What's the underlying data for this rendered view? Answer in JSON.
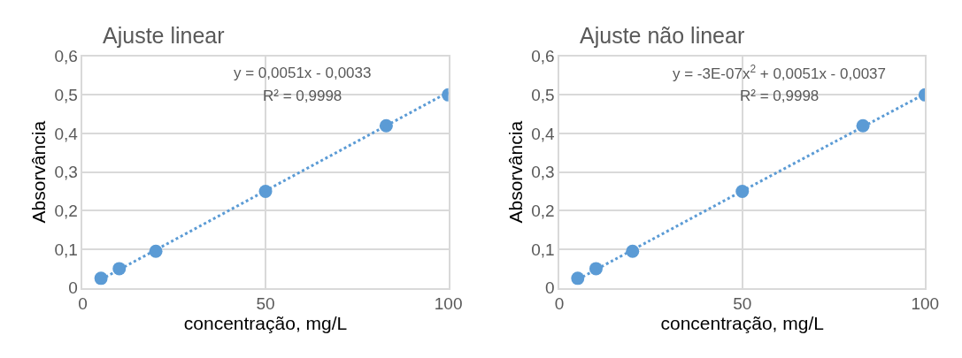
{
  "chart_data": [
    {
      "type": "scatter",
      "title": "Ajuste linear",
      "xlabel": "concentração, mg/L",
      "ylabel": "Absorvância",
      "annotations": [
        "y = 0,0051x - 0,0033",
        "R² = 0,9998"
      ],
      "x": [
        5,
        10,
        20,
        50,
        83,
        100
      ],
      "series": [
        {
          "color": "#5b9bd5",
          "marker": "circle",
          "values": [
            0.025,
            0.05,
            0.095,
            0.25,
            0.42,
            0.5
          ]
        },
        {
          "type": "line",
          "color": "#5b9bd5",
          "line_style": "dotted",
          "x": [
            5,
            100
          ],
          "values": [
            0.022,
            0.507
          ]
        }
      ],
      "xlim": [
        0,
        100
      ],
      "xticks": [
        0,
        50,
        100
      ],
      "ylim": [
        0,
        0.6
      ],
      "yticks": [
        {
          "value": 0,
          "label": "0"
        },
        {
          "value": 0.1,
          "label": "0,1"
        },
        {
          "value": 0.2,
          "label": "0,2"
        },
        {
          "value": 0.3,
          "label": "0,3"
        },
        {
          "value": 0.4,
          "label": "0,4"
        },
        {
          "value": 0.5,
          "label": "0,5"
        },
        {
          "value": 0.6,
          "label": "0,6"
        }
      ],
      "grid": true
    },
    {
      "type": "scatter",
      "title": "Ajuste não linear",
      "xlabel": "concentração, mg/L",
      "ylabel": "Absorvância",
      "annotations": [
        "y = -3E-07x$^{2}$ + 0,0051x - 0,0037",
        "R² = 0,9998"
      ],
      "x": [
        5,
        10,
        20,
        50,
        83,
        100
      ],
      "series": [
        {
          "color": "#5b9bd5",
          "marker": "circle",
          "values": [
            0.025,
            0.05,
            0.095,
            0.25,
            0.42,
            0.5
          ]
        },
        {
          "type": "line",
          "color": "#5b9bd5",
          "line_style": "dotted",
          "x": [
            5,
            25,
            50,
            75,
            100
          ],
          "values": [
            0.022,
            0.124,
            0.251,
            0.377,
            0.503
          ]
        }
      ],
      "xlim": [
        0,
        100
      ],
      "xticks": [
        0,
        50,
        100
      ],
      "ylim": [
        0,
        0.6
      ],
      "yticks": [
        {
          "value": 0,
          "label": "0"
        },
        {
          "value": 0.1,
          "label": "0,1"
        },
        {
          "value": 0.2,
          "label": "0,2"
        },
        {
          "value": 0.3,
          "label": "0,3"
        },
        {
          "value": 0.4,
          "label": "0,4"
        },
        {
          "value": 0.5,
          "label": "0,5"
        },
        {
          "value": 0.6,
          "label": "0,6"
        }
      ],
      "grid": true
    }
  ]
}
